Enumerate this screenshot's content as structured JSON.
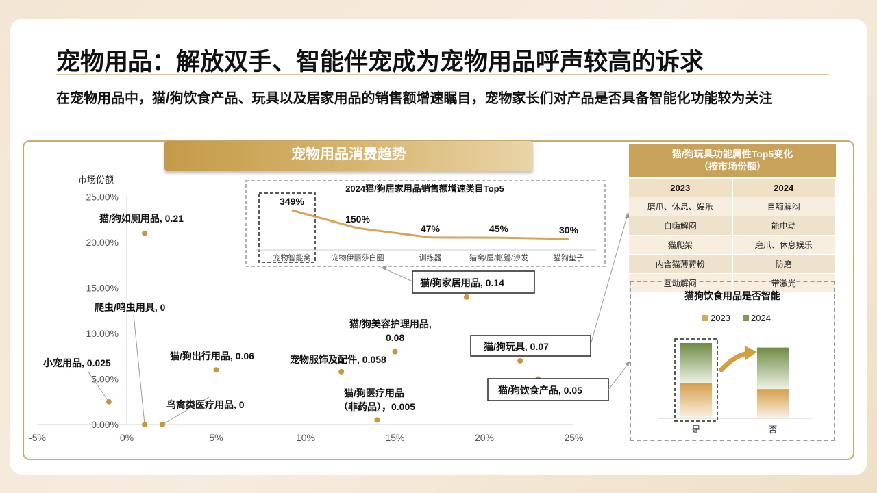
{
  "title": "宠物用品：解放双手、智能伴宠成为宠物用品呼声较高的诉求",
  "subtitle": "在宠物用品中，猫/狗饮食产品、玩具以及居家用品的销售额增速瞩目，宠物家长们对产品是否具备智能化功能较为关注",
  "banner": "宠物用品消费趋势",
  "chart_data": [
    {
      "type": "scatter",
      "title": "",
      "xlabel": "",
      "ylabel": "市场份额",
      "xlim": [
        -0.05,
        0.25
      ],
      "ylim": [
        0,
        0.25
      ],
      "x_ticks": [
        "-5%",
        "0%",
        "5%",
        "10%",
        "15%",
        "20%",
        "25%"
      ],
      "y_ticks": [
        "0.00%",
        "5.00%",
        "10.00%",
        "15.00%",
        "20.00%",
        "25.00%"
      ],
      "points": [
        {
          "label": "小宠用品, 0.025",
          "x": -0.01,
          "y": 0.025
        },
        {
          "label": "猫/狗如厕用品, 0.21",
          "x": 0.01,
          "y": 0.21
        },
        {
          "label": "爬虫/鸣虫用具, 0",
          "x": 0.01,
          "y": 0.0
        },
        {
          "label": "鸟禽类医疗用品, 0",
          "x": 0.02,
          "y": 0.0
        },
        {
          "label": "猫/狗出行用品, 0.06",
          "x": 0.05,
          "y": 0.06
        },
        {
          "label": "宠物服饰及配件, 0.058",
          "x": 0.12,
          "y": 0.058
        },
        {
          "label": "猫/狗美容护理用品, 0.08",
          "x": 0.15,
          "y": 0.08
        },
        {
          "label": "猫/狗医疗用品（非药品）, 0.005",
          "x": 0.14,
          "y": 0.005
        },
        {
          "label": "猫/狗家居用品, 0.14",
          "x": 0.19,
          "y": 0.14
        },
        {
          "label": "猫/狗玩具, 0.07",
          "x": 0.22,
          "y": 0.07
        },
        {
          "label": "猫/狗饮食产品, 0.05",
          "x": 0.23,
          "y": 0.05
        }
      ]
    },
    {
      "type": "line",
      "title": "2024猫/狗居家用品销售额增速类目Top5",
      "categories": [
        "宠物智能窝",
        "宠物伊丽莎白圈",
        "训练器",
        "猫窝/屋/帐篷/沙发",
        "猫狗垫子"
      ],
      "values": [
        3.49,
        1.5,
        0.47,
        0.45,
        0.3
      ],
      "data_labels": [
        "349%",
        "150%",
        "47%",
        "45%",
        "30%"
      ]
    },
    {
      "type": "bar",
      "title": "猫狗饮食用品是否智能",
      "stacked": true,
      "normalized": true,
      "categories": [
        "是",
        "否"
      ],
      "series": [
        {
          "name": "2023",
          "values": [
            0.47,
            0.39
          ],
          "color": "#d7a85a"
        },
        {
          "name": "2024",
          "values": [
            0.53,
            0.55
          ],
          "color": "#7f9a55"
        }
      ],
      "legend_position": "top"
    },
    {
      "type": "table",
      "title_line1": "猫/狗玩具功能属性Top5变化",
      "title_line2": "（按市场份额）",
      "columns": [
        "2023",
        "2024"
      ],
      "rows": [
        [
          "磨爪、休息、娱乐",
          "自嗨解闷"
        ],
        [
          "自嗨解闷",
          "能电动"
        ],
        [
          "猫爬架",
          "磨爪、休息娱乐"
        ],
        [
          "内含猫薄荷粉",
          "防磨"
        ],
        [
          "互动解闷",
          "带激光"
        ]
      ]
    }
  ],
  "scatter_callouts": {
    "home": "猫/狗家居用品, 0.14",
    "toys": "猫/狗玩具, 0.07",
    "food": "猫/狗饮食产品, 0.05"
  },
  "scatter_labels": {
    "small_pet": "小宠用品, 0.025",
    "toilet": "猫/狗如厕用品, 0.21",
    "reptile": "爬虫/鸣虫用具, 0",
    "bird": "鸟禽类医疗用品, 0",
    "travel": "猫/狗出行用品, 0.06",
    "clothing": "宠物服饰及配件, 0.058",
    "beauty_line1": "猫/狗美容护理用品,",
    "beauty_line2": "0.08",
    "medical_line1": "猫/狗医疗用品",
    "medical_line2": "（非药品），0.005"
  },
  "colors": {
    "accent_gold": "#c9a25a",
    "point": "#c9963f",
    "line": "#d4a659",
    "dark_green": "#7f9a55"
  }
}
